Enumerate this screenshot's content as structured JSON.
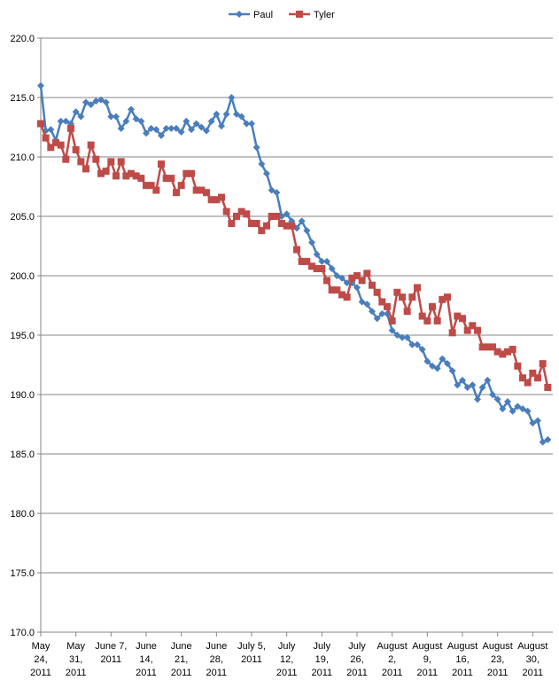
{
  "chart_data": {
    "type": "line",
    "title": "",
    "xlabel": "",
    "ylabel": "",
    "ylim": [
      170,
      220
    ],
    "y_ticks": [
      "170.0",
      "175.0",
      "180.0",
      "185.0",
      "190.0",
      "195.0",
      "200.0",
      "205.0",
      "210.0",
      "215.0",
      "220.0"
    ],
    "x_range": [
      "2011-05-24",
      "2011-09-03"
    ],
    "x_ticks": [
      {
        "date": "2011-05-24",
        "lines": [
          "May",
          "24,",
          "2011"
        ]
      },
      {
        "date": "2011-05-31",
        "lines": [
          "May",
          "31,",
          "2011"
        ]
      },
      {
        "date": "2011-06-07",
        "lines": [
          "June 7,",
          "2011"
        ]
      },
      {
        "date": "2011-06-14",
        "lines": [
          "June",
          "14,",
          "2011"
        ]
      },
      {
        "date": "2011-06-21",
        "lines": [
          "June",
          "21,",
          "2011"
        ]
      },
      {
        "date": "2011-06-28",
        "lines": [
          "June",
          "28,",
          "2011"
        ]
      },
      {
        "date": "2011-07-05",
        "lines": [
          "July 5,",
          "2011"
        ]
      },
      {
        "date": "2011-07-12",
        "lines": [
          "July",
          "12,",
          "2011"
        ]
      },
      {
        "date": "2011-07-19",
        "lines": [
          "July",
          "19,",
          "2011"
        ]
      },
      {
        "date": "2011-07-26",
        "lines": [
          "July",
          "26,",
          "2011"
        ]
      },
      {
        "date": "2011-08-02",
        "lines": [
          "August",
          "2,",
          "2011"
        ]
      },
      {
        "date": "2011-08-09",
        "lines": [
          "August",
          "9,",
          "2011"
        ]
      },
      {
        "date": "2011-08-16",
        "lines": [
          "August",
          "16,",
          "2011"
        ]
      },
      {
        "date": "2011-08-23",
        "lines": [
          "August",
          "23,",
          "2011"
        ]
      },
      {
        "date": "2011-08-30",
        "lines": [
          "August",
          "30,",
          "2011"
        ]
      }
    ],
    "grid": "horizontal",
    "legend": "top-center",
    "series": [
      {
        "name": "Paul",
        "color": "#4A7EBB",
        "marker": "diamond",
        "points": [
          [
            "2011-05-24",
            216.0
          ],
          [
            "2011-05-25",
            212.2
          ],
          [
            "2011-05-26",
            212.3
          ],
          [
            "2011-05-27",
            211.4
          ],
          [
            "2011-05-28",
            213.0
          ],
          [
            "2011-05-29",
            213.0
          ],
          [
            "2011-05-30",
            212.8
          ],
          [
            "2011-05-31",
            213.8
          ],
          [
            "2011-06-01",
            213.4
          ],
          [
            "2011-06-02",
            214.6
          ],
          [
            "2011-06-03",
            214.4
          ],
          [
            "2011-06-04",
            214.7
          ],
          [
            "2011-06-05",
            214.8
          ],
          [
            "2011-06-06",
            214.6
          ],
          [
            "2011-06-07",
            213.4
          ],
          [
            "2011-06-08",
            213.4
          ],
          [
            "2011-06-09",
            212.4
          ],
          [
            "2011-06-10",
            213.0
          ],
          [
            "2011-06-11",
            214.0
          ],
          [
            "2011-06-12",
            213.2
          ],
          [
            "2011-06-13",
            213.0
          ],
          [
            "2011-06-14",
            212.0
          ],
          [
            "2011-06-15",
            212.4
          ],
          [
            "2011-06-16",
            212.3
          ],
          [
            "2011-06-17",
            211.8
          ],
          [
            "2011-06-18",
            212.4
          ],
          [
            "2011-06-19",
            212.4
          ],
          [
            "2011-06-20",
            212.4
          ],
          [
            "2011-06-21",
            212.1
          ],
          [
            "2011-06-22",
            213.0
          ],
          [
            "2011-06-23",
            212.3
          ],
          [
            "2011-06-24",
            212.8
          ],
          [
            "2011-06-25",
            212.5
          ],
          [
            "2011-06-26",
            212.2
          ],
          [
            "2011-06-27",
            213.0
          ],
          [
            "2011-06-28",
            213.6
          ],
          [
            "2011-06-29",
            212.6
          ],
          [
            "2011-06-30",
            213.6
          ],
          [
            "2011-07-01",
            215.0
          ],
          [
            "2011-07-02",
            213.6
          ],
          [
            "2011-07-03",
            213.4
          ],
          [
            "2011-07-04",
            212.8
          ],
          [
            "2011-07-05",
            212.8
          ],
          [
            "2011-07-06",
            210.8
          ],
          [
            "2011-07-07",
            209.4
          ],
          [
            "2011-07-08",
            208.6
          ],
          [
            "2011-07-09",
            207.2
          ],
          [
            "2011-07-10",
            207.0
          ],
          [
            "2011-07-11",
            205.0
          ],
          [
            "2011-07-12",
            205.2
          ],
          [
            "2011-07-13",
            204.6
          ],
          [
            "2011-07-14",
            204.0
          ],
          [
            "2011-07-15",
            204.6
          ],
          [
            "2011-07-16",
            203.8
          ],
          [
            "2011-07-17",
            202.8
          ],
          [
            "2011-07-18",
            201.8
          ],
          [
            "2011-07-19",
            201.2
          ],
          [
            "2011-07-20",
            201.2
          ],
          [
            "2011-07-21",
            200.6
          ],
          [
            "2011-07-22",
            200.0
          ],
          [
            "2011-07-23",
            199.8
          ],
          [
            "2011-07-24",
            199.4
          ],
          [
            "2011-07-25",
            199.4
          ],
          [
            "2011-07-26",
            199.0
          ],
          [
            "2011-07-27",
            197.8
          ],
          [
            "2011-07-28",
            197.6
          ],
          [
            "2011-07-29",
            197.0
          ],
          [
            "2011-07-30",
            196.4
          ],
          [
            "2011-07-31",
            196.8
          ],
          [
            "2011-08-01",
            196.8
          ],
          [
            "2011-08-02",
            195.4
          ],
          [
            "2011-08-03",
            195.0
          ],
          [
            "2011-08-04",
            194.8
          ],
          [
            "2011-08-05",
            194.8
          ],
          [
            "2011-08-06",
            194.2
          ],
          [
            "2011-08-07",
            194.2
          ],
          [
            "2011-08-08",
            193.8
          ],
          [
            "2011-08-09",
            192.8
          ],
          [
            "2011-08-10",
            192.4
          ],
          [
            "2011-08-11",
            192.2
          ],
          [
            "2011-08-12",
            193.0
          ],
          [
            "2011-08-13",
            192.6
          ],
          [
            "2011-08-14",
            192.0
          ],
          [
            "2011-08-15",
            190.8
          ],
          [
            "2011-08-16",
            191.2
          ],
          [
            "2011-08-17",
            190.6
          ],
          [
            "2011-08-18",
            190.8
          ],
          [
            "2011-08-19",
            189.6
          ],
          [
            "2011-08-20",
            190.6
          ],
          [
            "2011-08-21",
            191.2
          ],
          [
            "2011-08-22",
            190.0
          ],
          [
            "2011-08-23",
            189.6
          ],
          [
            "2011-08-24",
            188.8
          ],
          [
            "2011-08-25",
            189.4
          ],
          [
            "2011-08-26",
            188.6
          ],
          [
            "2011-08-27",
            189.0
          ],
          [
            "2011-08-28",
            188.8
          ],
          [
            "2011-08-29",
            188.6
          ],
          [
            "2011-08-30",
            187.6
          ],
          [
            "2011-08-31",
            187.8
          ],
          [
            "2011-09-01",
            186.0
          ],
          [
            "2011-09-02",
            186.2
          ]
        ]
      },
      {
        "name": "Tyler",
        "color": "#BE4B48",
        "marker": "square",
        "points": [
          [
            "2011-05-24",
            212.8
          ],
          [
            "2011-05-25",
            211.6
          ],
          [
            "2011-05-26",
            210.8
          ],
          [
            "2011-05-27",
            211.2
          ],
          [
            "2011-05-28",
            211.0
          ],
          [
            "2011-05-29",
            209.8
          ],
          [
            "2011-05-30",
            212.4
          ],
          [
            "2011-05-31",
            210.6
          ],
          [
            "2011-06-01",
            209.6
          ],
          [
            "2011-06-02",
            209.0
          ],
          [
            "2011-06-03",
            211.0
          ],
          [
            "2011-06-04",
            209.8
          ],
          [
            "2011-06-05",
            208.6
          ],
          [
            "2011-06-06",
            208.8
          ],
          [
            "2011-06-07",
            209.6
          ],
          [
            "2011-06-08",
            208.4
          ],
          [
            "2011-06-09",
            209.6
          ],
          [
            "2011-06-10",
            208.4
          ],
          [
            "2011-06-11",
            208.6
          ],
          [
            "2011-06-12",
            208.4
          ],
          [
            "2011-06-13",
            208.2
          ],
          [
            "2011-06-14",
            207.6
          ],
          [
            "2011-06-15",
            207.6
          ],
          [
            "2011-06-16",
            207.2
          ],
          [
            "2011-06-17",
            209.4
          ],
          [
            "2011-06-18",
            208.2
          ],
          [
            "2011-06-19",
            208.2
          ],
          [
            "2011-06-20",
            207.0
          ],
          [
            "2011-06-21",
            207.6
          ],
          [
            "2011-06-22",
            208.6
          ],
          [
            "2011-06-23",
            208.6
          ],
          [
            "2011-06-24",
            207.2
          ],
          [
            "2011-06-25",
            207.2
          ],
          [
            "2011-06-26",
            207.0
          ],
          [
            "2011-06-27",
            206.4
          ],
          [
            "2011-06-28",
            206.4
          ],
          [
            "2011-06-29",
            206.6
          ],
          [
            "2011-06-30",
            205.4
          ],
          [
            "2011-07-01",
            204.4
          ],
          [
            "2011-07-02",
            205.0
          ],
          [
            "2011-07-03",
            205.4
          ],
          [
            "2011-07-04",
            205.2
          ],
          [
            "2011-07-05",
            204.4
          ],
          [
            "2011-07-06",
            204.4
          ],
          [
            "2011-07-07",
            203.8
          ],
          [
            "2011-07-08",
            204.2
          ],
          [
            "2011-07-09",
            205.0
          ],
          [
            "2011-07-10",
            205.0
          ],
          [
            "2011-07-11",
            204.4
          ],
          [
            "2011-07-12",
            204.2
          ],
          [
            "2011-07-13",
            204.2
          ],
          [
            "2011-07-14",
            202.2
          ],
          [
            "2011-07-15",
            201.2
          ],
          [
            "2011-07-16",
            201.2
          ],
          [
            "2011-07-17",
            200.8
          ],
          [
            "2011-07-18",
            200.6
          ],
          [
            "2011-07-19",
            200.6
          ],
          [
            "2011-07-20",
            199.6
          ],
          [
            "2011-07-21",
            198.8
          ],
          [
            "2011-07-22",
            198.8
          ],
          [
            "2011-07-23",
            198.4
          ],
          [
            "2011-07-24",
            198.2
          ],
          [
            "2011-07-25",
            199.8
          ],
          [
            "2011-07-26",
            200.0
          ],
          [
            "2011-07-27",
            199.6
          ],
          [
            "2011-07-28",
            200.2
          ],
          [
            "2011-07-29",
            199.2
          ],
          [
            "2011-07-30",
            198.6
          ],
          [
            "2011-07-31",
            197.8
          ],
          [
            "2011-08-01",
            197.4
          ],
          [
            "2011-08-02",
            196.2
          ],
          [
            "2011-08-03",
            198.6
          ],
          [
            "2011-08-04",
            198.2
          ],
          [
            "2011-08-05",
            197.0
          ],
          [
            "2011-08-06",
            198.2
          ],
          [
            "2011-08-07",
            199.0
          ],
          [
            "2011-08-08",
            196.6
          ],
          [
            "2011-08-09",
            196.2
          ],
          [
            "2011-08-10",
            197.4
          ],
          [
            "2011-08-11",
            196.2
          ],
          [
            "2011-08-12",
            198.0
          ],
          [
            "2011-08-13",
            198.2
          ],
          [
            "2011-08-14",
            195.2
          ],
          [
            "2011-08-15",
            196.6
          ],
          [
            "2011-08-16",
            196.4
          ],
          [
            "2011-08-17",
            195.4
          ],
          [
            "2011-08-18",
            195.8
          ],
          [
            "2011-08-19",
            195.4
          ],
          [
            "2011-08-20",
            194.0
          ],
          [
            "2011-08-21",
            194.0
          ],
          [
            "2011-08-22",
            194.0
          ],
          [
            "2011-08-23",
            193.6
          ],
          [
            "2011-08-24",
            193.4
          ],
          [
            "2011-08-25",
            193.6
          ],
          [
            "2011-08-26",
            193.8
          ],
          [
            "2011-08-27",
            192.4
          ],
          [
            "2011-08-28",
            191.4
          ],
          [
            "2011-08-29",
            191.0
          ],
          [
            "2011-08-30",
            191.8
          ],
          [
            "2011-08-31",
            191.4
          ],
          [
            "2011-09-01",
            192.6
          ],
          [
            "2011-09-02",
            190.6
          ]
        ]
      }
    ]
  }
}
